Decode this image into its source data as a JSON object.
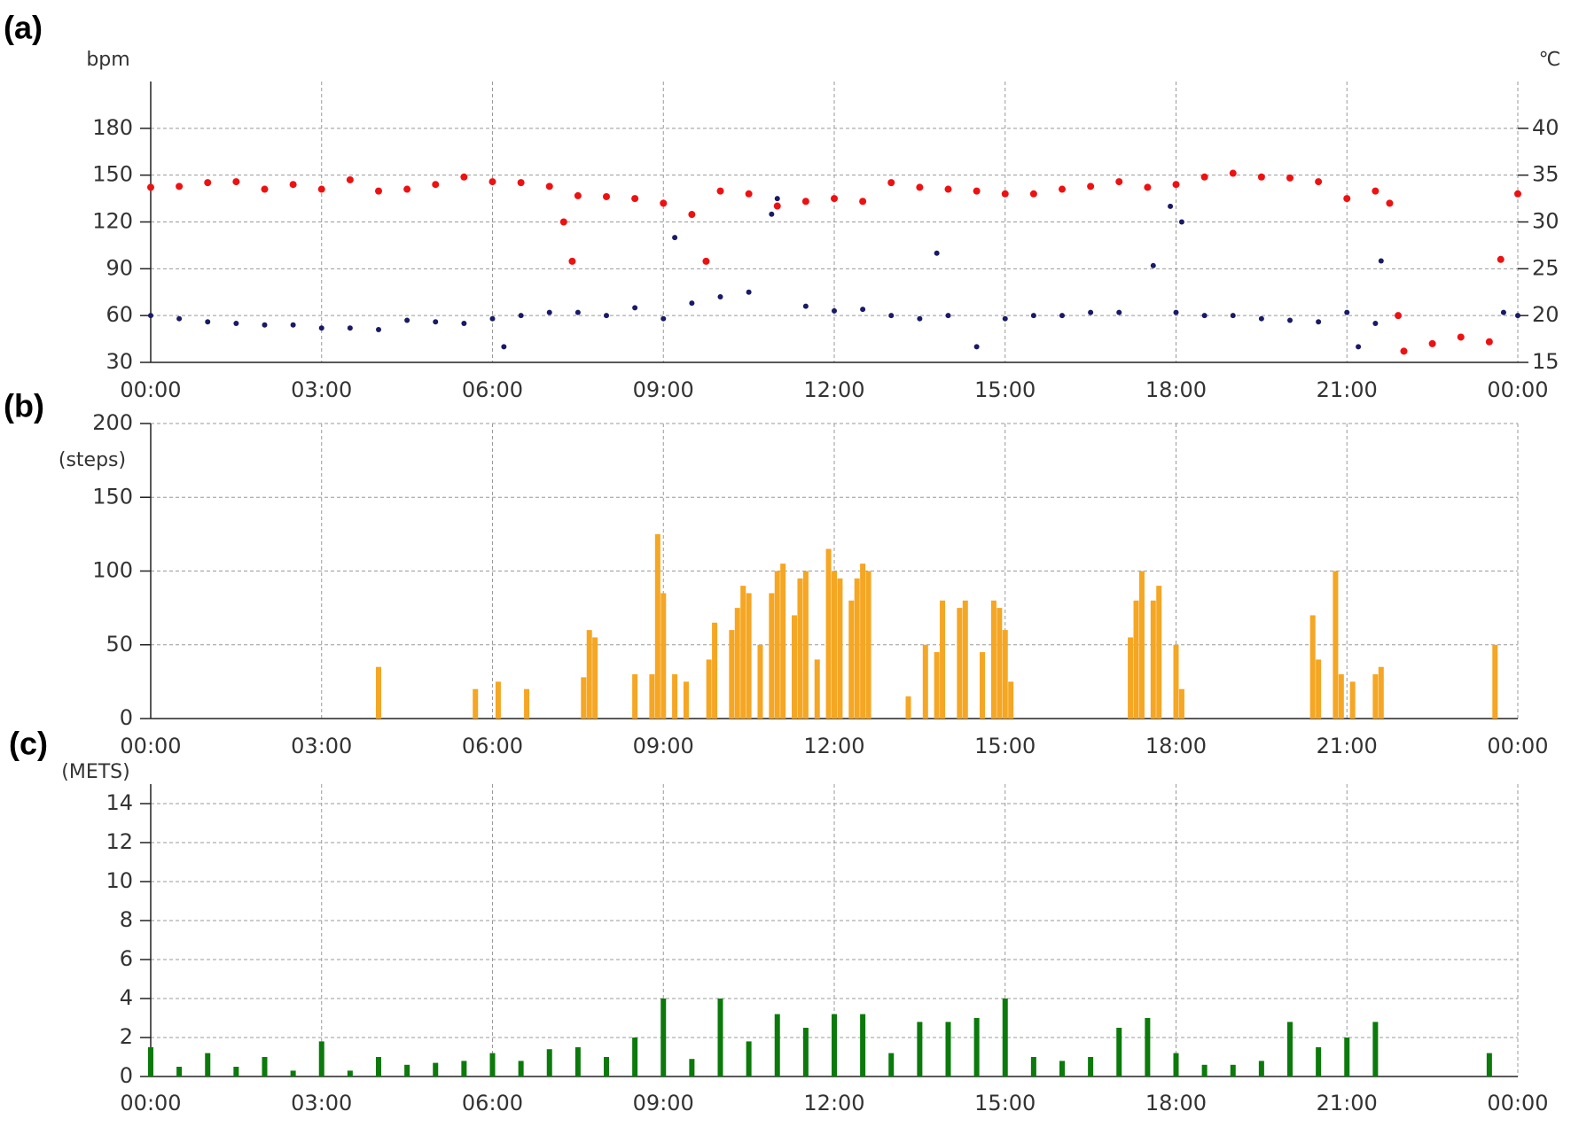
{
  "chart_data": [
    {
      "type": "scatter",
      "panel_label": "(a)",
      "y_label": "bpm",
      "y2_label": "℃",
      "xlim": [
        0,
        24
      ],
      "xticks": [
        {
          "value": 0,
          "label": "00:00"
        },
        {
          "value": 3,
          "label": "03:00"
        },
        {
          "value": 6,
          "label": "06:00"
        },
        {
          "value": 9,
          "label": "09:00"
        },
        {
          "value": 12,
          "label": "12:00"
        },
        {
          "value": 15,
          "label": "15:00"
        },
        {
          "value": 18,
          "label": "18:00"
        },
        {
          "value": 21,
          "label": "21:00"
        },
        {
          "value": 24,
          "label": "00:00"
        }
      ],
      "ylim": [
        30,
        210
      ],
      "yticks": [
        30,
        60,
        90,
        120,
        150,
        180
      ],
      "y2lim": [
        15,
        45
      ],
      "y2ticks": [
        15,
        20,
        25,
        30,
        35,
        40
      ],
      "grid": true,
      "series": [
        {
          "color": "#ee1111",
          "axis": "y2",
          "x": [
            0,
            0.5,
            1,
            1.5,
            2,
            2.5,
            3,
            3.5,
            4,
            4.5,
            5,
            5.5,
            6,
            6.5,
            7,
            7.25,
            7.4,
            7.5,
            8,
            8.5,
            9,
            9.5,
            9.75,
            10,
            10.5,
            11,
            11.5,
            12,
            12.5,
            13,
            13.5,
            14,
            14.5,
            15,
            15.5,
            16,
            16.5,
            17,
            17.5,
            18,
            18.5,
            19,
            19.5,
            20,
            20.5,
            21,
            21.5,
            21.75,
            21.9,
            22,
            22.5,
            23,
            23.5,
            23.7,
            24
          ],
          "values": [
            33.7,
            33.8,
            34.2,
            34.3,
            33.5,
            34,
            33.5,
            34.5,
            33.3,
            33.5,
            34,
            34.8,
            34.3,
            34.2,
            33.8,
            30,
            25.8,
            32.8,
            32.7,
            32.5,
            32,
            30.8,
            25.8,
            33.3,
            33,
            31.7,
            32.2,
            32.5,
            32.2,
            34.2,
            33.7,
            33.5,
            33.3,
            33,
            33,
            33.5,
            33.8,
            34.3,
            33.7,
            34,
            34.8,
            35.2,
            34.8,
            34.7,
            34.3,
            32.5,
            33.3,
            32,
            20,
            16.2,
            17,
            17.7,
            17.2,
            26,
            33
          ]
        },
        {
          "color": "#1a1a66",
          "axis": "y",
          "x": [
            0,
            0.5,
            1,
            1.5,
            2,
            2.5,
            3,
            3.5,
            4,
            4.5,
            5,
            5.5,
            6,
            6.2,
            6.5,
            7,
            7.5,
            8,
            8.5,
            9,
            9.2,
            9.5,
            10,
            10.5,
            10.9,
            11,
            11.5,
            12,
            12.5,
            13,
            13.5,
            13.8,
            14,
            14.5,
            15,
            15.5,
            16,
            16.5,
            17,
            17.6,
            17.9,
            18,
            18.1,
            18.5,
            19,
            19.5,
            20,
            20.5,
            21,
            21.2,
            21.5,
            21.6,
            23.75,
            24
          ],
          "values": [
            60,
            58,
            56,
            55,
            54,
            54,
            52,
            52,
            51,
            57,
            56,
            55,
            58,
            40,
            60,
            62,
            62,
            60,
            65,
            58,
            110,
            68,
            72,
            75,
            125,
            135,
            66,
            63,
            64,
            60,
            58,
            100,
            60,
            40,
            58,
            60,
            60,
            62,
            62,
            92,
            130,
            62,
            120,
            60,
            60,
            58,
            57,
            56,
            62,
            40,
            55,
            95,
            62,
            60
          ]
        }
      ]
    },
    {
      "type": "bar",
      "panel_label": "(b)",
      "y_label": "(steps)",
      "color": "#f5a623",
      "xlim": [
        0,
        24
      ],
      "xticks": [
        {
          "value": 0,
          "label": "00:00"
        },
        {
          "value": 3,
          "label": "03:00"
        },
        {
          "value": 6,
          "label": "06:00"
        },
        {
          "value": 9,
          "label": "09:00"
        },
        {
          "value": 12,
          "label": "12:00"
        },
        {
          "value": 15,
          "label": "15:00"
        },
        {
          "value": 18,
          "label": "18:00"
        },
        {
          "value": 21,
          "label": "21:00"
        },
        {
          "value": 24,
          "label": "00:00"
        }
      ],
      "ylim": [
        0,
        200
      ],
      "yticks": [
        0,
        50,
        100,
        150,
        200
      ],
      "grid": true,
      "x": [
        4.0,
        5.7,
        6.1,
        6.6,
        7.6,
        7.7,
        7.8,
        8.5,
        8.8,
        8.9,
        9.0,
        9.2,
        9.4,
        9.8,
        9.9,
        10.2,
        10.3,
        10.4,
        10.5,
        10.7,
        10.9,
        11.0,
        11.1,
        11.3,
        11.4,
        11.5,
        11.7,
        11.9,
        12.0,
        12.1,
        12.3,
        12.4,
        12.5,
        12.6,
        13.3,
        13.6,
        13.8,
        13.9,
        14.2,
        14.3,
        14.6,
        14.8,
        14.9,
        15.0,
        15.1,
        17.2,
        17.3,
        17.4,
        17.6,
        17.7,
        18.0,
        18.1,
        20.4,
        20.5,
        20.8,
        20.9,
        21.1,
        21.5,
        21.6,
        23.6
      ],
      "values": [
        35,
        20,
        25,
        20,
        28,
        60,
        55,
        30,
        30,
        125,
        85,
        30,
        25,
        40,
        65,
        60,
        75,
        90,
        85,
        50,
        85,
        100,
        105,
        70,
        95,
        100,
        40,
        115,
        100,
        95,
        80,
        95,
        105,
        100,
        15,
        50,
        45,
        80,
        75,
        80,
        45,
        80,
        75,
        60,
        25,
        55,
        80,
        100,
        80,
        90,
        50,
        20,
        70,
        40,
        100,
        30,
        25,
        30,
        35,
        50
      ]
    },
    {
      "type": "bar",
      "panel_label": "(c)",
      "y_label": "(METS)",
      "color": "#0b7a0b",
      "xlim": [
        0,
        24
      ],
      "xticks": [
        {
          "value": 0,
          "label": "00:00"
        },
        {
          "value": 3,
          "label": "03:00"
        },
        {
          "value": 6,
          "label": "06:00"
        },
        {
          "value": 9,
          "label": "09:00"
        },
        {
          "value": 12,
          "label": "12:00"
        },
        {
          "value": 15,
          "label": "15:00"
        },
        {
          "value": 18,
          "label": "18:00"
        },
        {
          "value": 21,
          "label": "21:00"
        },
        {
          "value": 24,
          "label": "00:00"
        }
      ],
      "ylim": [
        0,
        15
      ],
      "yticks": [
        0,
        2,
        4,
        6,
        8,
        10,
        12,
        14
      ],
      "grid": true,
      "x": [
        0,
        0.5,
        1,
        1.5,
        2,
        2.5,
        3,
        3.5,
        4,
        4.5,
        5,
        5.5,
        6,
        6.5,
        7,
        7.5,
        8,
        8.5,
        9,
        9.5,
        10,
        10.5,
        11,
        11.5,
        12,
        12.5,
        13,
        13.5,
        14,
        14.5,
        15,
        15.5,
        16,
        16.5,
        17,
        17.5,
        18,
        18.5,
        19,
        19.5,
        20,
        20.5,
        21,
        21.5,
        22,
        22.5,
        23,
        23.5
      ],
      "values": [
        1.5,
        0.5,
        1.2,
        0.5,
        1.0,
        0.3,
        1.8,
        0.3,
        1.0,
        0.6,
        0.7,
        0.8,
        1.2,
        0.8,
        1.4,
        1.5,
        1.0,
        2.0,
        4.0,
        0.9,
        4.0,
        1.8,
        3.2,
        2.5,
        3.2,
        3.2,
        1.2,
        2.8,
        2.8,
        3.0,
        4.0,
        1.0,
        0.8,
        1.0,
        2.5,
        3.0,
        1.2,
        0.6,
        0.6,
        0.8,
        2.8,
        1.5,
        2.0,
        2.8,
        0,
        0,
        0,
        1.2
      ]
    }
  ]
}
